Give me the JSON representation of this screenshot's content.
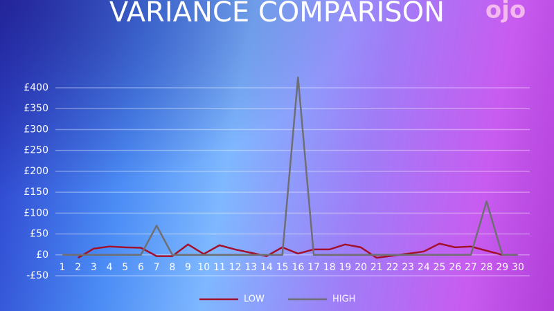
{
  "logo": "ojo",
  "chart_data": {
    "type": "line",
    "title": "VARIANCE COMPARISON",
    "categories": [
      1,
      2,
      3,
      4,
      5,
      6,
      7,
      8,
      9,
      10,
      11,
      12,
      13,
      14,
      15,
      16,
      17,
      18,
      19,
      20,
      21,
      22,
      23,
      24,
      25,
      26,
      27,
      28,
      29,
      30
    ],
    "series": [
      {
        "name": "LOW",
        "color": "#a3102b",
        "values": [
          null,
          -7,
          15,
          20,
          18,
          17,
          -3,
          -3,
          25,
          2,
          23,
          13,
          5,
          -3,
          18,
          3,
          13,
          13,
          25,
          18,
          -7,
          -2,
          3,
          8,
          27,
          18,
          20,
          10,
          0,
          0
        ]
      },
      {
        "name": "HIGH",
        "color": "#6f6f73",
        "values": [
          0,
          0,
          0,
          0,
          0,
          0,
          70,
          0,
          0,
          0,
          0,
          0,
          0,
          0,
          0,
          425,
          0,
          0,
          0,
          0,
          0,
          0,
          0,
          0,
          0,
          0,
          0,
          128,
          0,
          0
        ]
      }
    ],
    "ylim": [
      -50,
      400
    ],
    "yticks": [
      {
        "value": -50,
        "label": "-£50"
      },
      {
        "value": 0,
        "label": "£0"
      },
      {
        "value": 50,
        "label": "£50"
      },
      {
        "value": 100,
        "label": "£100"
      },
      {
        "value": 150,
        "label": "£150"
      },
      {
        "value": 200,
        "label": "£200"
      },
      {
        "value": 250,
        "label": "£250"
      },
      {
        "value": 300,
        "label": "£300"
      },
      {
        "value": 350,
        "label": "£350"
      },
      {
        "value": 400,
        "label": "£400"
      }
    ],
    "grid": true,
    "legend": "bottom"
  }
}
